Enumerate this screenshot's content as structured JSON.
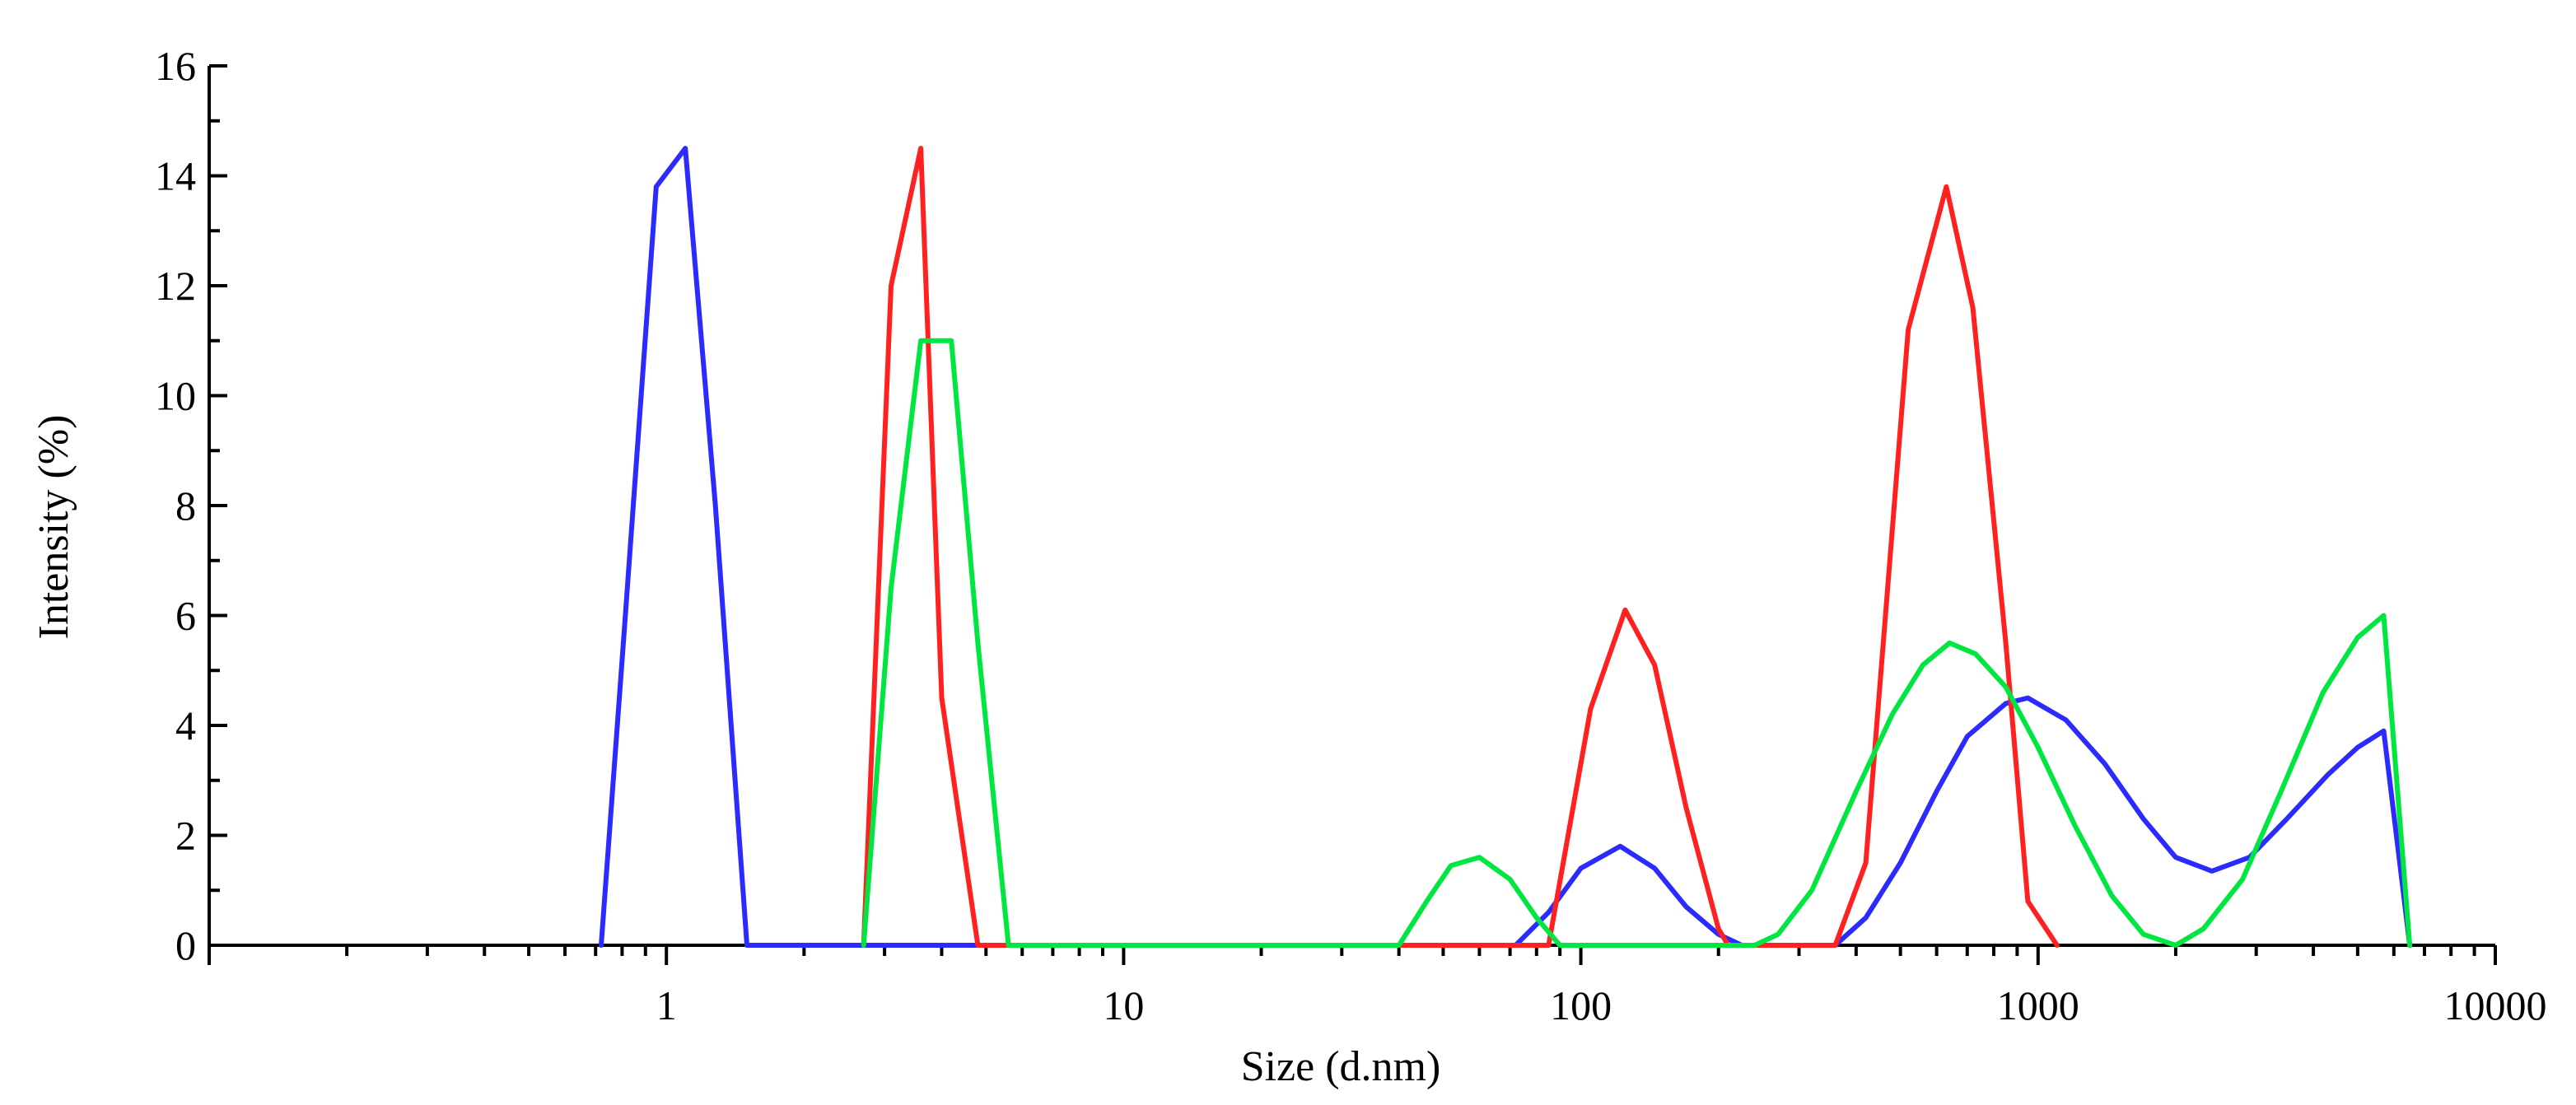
{
  "chart_data": {
    "type": "line",
    "xlabel": "Size (d.nm)",
    "ylabel": "Intensity (%)",
    "xscale": "log",
    "xlim": [
      0.1,
      10000
    ],
    "ylim": [
      0,
      16
    ],
    "x_ticks": [
      1,
      10,
      100,
      1000,
      10000
    ],
    "x_tick_labels": [
      "1",
      "10",
      "100",
      "1000",
      "10000"
    ],
    "y_ticks": [
      0,
      2,
      4,
      6,
      8,
      10,
      12,
      14,
      16
    ],
    "y_tick_labels": [
      "0",
      "2",
      "4",
      "6",
      "8",
      "10",
      "12",
      "14",
      "16"
    ],
    "grid": false,
    "legend": "none",
    "series": [
      {
        "color": "#2b2bff",
        "points": [
          [
            0.72,
            0
          ],
          [
            0.81,
            5.8
          ],
          [
            0.95,
            13.8
          ],
          [
            1.1,
            14.5
          ],
          [
            1.28,
            8.0
          ],
          [
            1.5,
            0
          ],
          [
            72,
            0
          ],
          [
            85,
            0.6
          ],
          [
            100,
            1.4
          ],
          [
            122,
            1.8
          ],
          [
            145,
            1.4
          ],
          [
            170,
            0.7
          ],
          [
            200,
            0.2
          ],
          [
            225,
            0
          ],
          [
            360,
            0
          ],
          [
            420,
            0.5
          ],
          [
            500,
            1.5
          ],
          [
            600,
            2.8
          ],
          [
            700,
            3.8
          ],
          [
            850,
            4.4
          ],
          [
            950,
            4.5
          ],
          [
            1150,
            4.1
          ],
          [
            1400,
            3.3
          ],
          [
            1700,
            2.3
          ],
          [
            2000,
            1.6
          ],
          [
            2400,
            1.35
          ],
          [
            2900,
            1.6
          ],
          [
            3500,
            2.3
          ],
          [
            4300,
            3.1
          ],
          [
            5000,
            3.6
          ],
          [
            5700,
            3.9
          ],
          [
            6500,
            0
          ]
        ]
      },
      {
        "color": "#ff2020",
        "points": [
          [
            2.7,
            0
          ],
          [
            3.1,
            12.0
          ],
          [
            3.6,
            14.5
          ],
          [
            4.0,
            4.5
          ],
          [
            4.8,
            0
          ],
          [
            85,
            0
          ],
          [
            105,
            4.3
          ],
          [
            125,
            6.1
          ],
          [
            145,
            5.1
          ],
          [
            170,
            2.5
          ],
          [
            200,
            0.3
          ],
          [
            210,
            0
          ],
          [
            360,
            0
          ],
          [
            420,
            1.5
          ],
          [
            520,
            11.2
          ],
          [
            630,
            13.8
          ],
          [
            720,
            11.6
          ],
          [
            850,
            5.5
          ],
          [
            950,
            0.8
          ],
          [
            1100,
            0
          ]
        ]
      },
      {
        "color": "#00e640",
        "points": [
          [
            2.7,
            0
          ],
          [
            3.1,
            6.5
          ],
          [
            3.6,
            11.0
          ],
          [
            4.2,
            11.0
          ],
          [
            4.8,
            5.5
          ],
          [
            5.6,
            0
          ],
          [
            40,
            0
          ],
          [
            46,
            0.8
          ],
          [
            52,
            1.45
          ],
          [
            60,
            1.6
          ],
          [
            70,
            1.2
          ],
          [
            80,
            0.5
          ],
          [
            90,
            0
          ],
          [
            240,
            0
          ],
          [
            270,
            0.2
          ],
          [
            320,
            1.0
          ],
          [
            400,
            2.8
          ],
          [
            480,
            4.2
          ],
          [
            560,
            5.1
          ],
          [
            640,
            5.5
          ],
          [
            730,
            5.3
          ],
          [
            850,
            4.7
          ],
          [
            1000,
            3.6
          ],
          [
            1200,
            2.2
          ],
          [
            1450,
            0.9
          ],
          [
            1700,
            0.2
          ],
          [
            2000,
            0
          ],
          [
            2300,
            0.3
          ],
          [
            2800,
            1.2
          ],
          [
            3400,
            2.8
          ],
          [
            4200,
            4.6
          ],
          [
            5000,
            5.6
          ],
          [
            5700,
            6.0
          ],
          [
            6500,
            0
          ]
        ]
      }
    ]
  }
}
